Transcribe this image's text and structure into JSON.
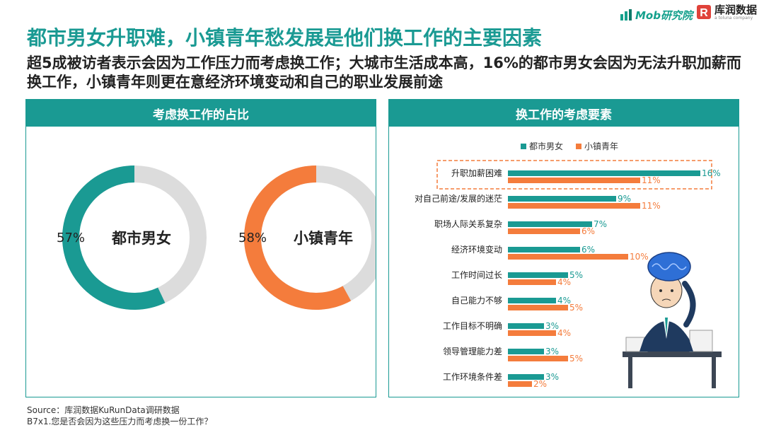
{
  "logos": {
    "mob": "Mob研究院",
    "kurun": "库润数据",
    "kurun_sub": "a toluna company"
  },
  "title": "都市男女升职难，小镇青年愁发展是他们换工作的主要因素",
  "subtitle": "超5成被访者表示会因为工作压力而考虑换工作；大城市生活成本高，16%的都市男女会因为无法升职加薪而换工作，小镇青年则更在意经济环境变动和自己的职业发展前途",
  "left_panel": {
    "header": "考虑换工作的占比"
  },
  "right_panel": {
    "header": "换工作的考虑要素"
  },
  "colors": {
    "teal": "#1a9a93",
    "orange": "#f47c3c",
    "grey": "#dcdcdc",
    "highlight_border": "#f47c3c"
  },
  "chart_data": [
    {
      "type": "pie",
      "variant": "donut",
      "slices": [
        {
          "label": "都市男女",
          "value": 57,
          "display": "57%",
          "color": "#1a9a93"
        },
        {
          "label": "小镇青年",
          "value": 58,
          "display": "58%",
          "color": "#f47c3c"
        }
      ]
    },
    {
      "type": "bar",
      "orientation": "horizontal",
      "categories": [
        "升职加薪困难",
        "对自己前途/发展的迷茫",
        "职场人际关系复杂",
        "经济环境变动",
        "工作时间过长",
        "自己能力不够",
        "工作目标不明确",
        "领导管理能力差",
        "工作环境条件差"
      ],
      "series": [
        {
          "name": "都市男女",
          "color": "#1a9a93",
          "values": [
            16,
            9,
            7,
            6,
            5,
            4,
            3,
            3,
            3
          ],
          "labels": [
            "16%",
            "9%",
            "7%",
            "6%",
            "5%",
            "4%",
            "3%",
            "3%",
            "3%"
          ]
        },
        {
          "name": "小镇青年",
          "color": "#f47c3c",
          "values": [
            11,
            11,
            6,
            10,
            4,
            5,
            4,
            5,
            2
          ],
          "labels": [
            "11%",
            "11%",
            "6%",
            "10%",
            "4%",
            "5%",
            "4%",
            "5%",
            "2%"
          ]
        }
      ],
      "legend_position": "top",
      "highlight_category": "升职加薪困难"
    }
  ],
  "source": {
    "line1": "Source：库润数据KuRunData调研数据",
    "line2": "B7x1.您是否会因为这些压力而考虑换一份工作？"
  }
}
